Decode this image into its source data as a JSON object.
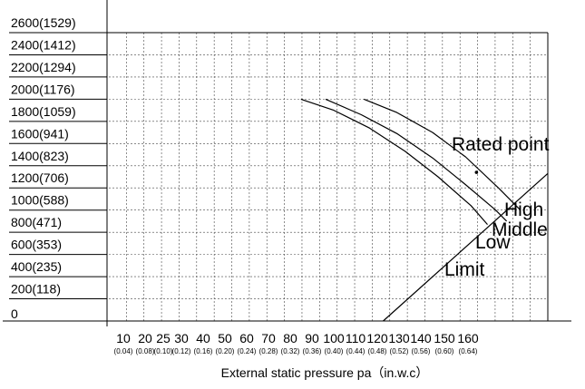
{
  "chart_data": {
    "type": "line",
    "xlabel": "External static pressure pa（in.w.c）",
    "ylabel": "",
    "x_ticks": [
      {
        "value": 10,
        "label": "10",
        "sub": "(0.04)"
      },
      {
        "value": 20,
        "label": "20",
        "sub": "(0.08)"
      },
      {
        "value": 25,
        "label": "25",
        "sub": "(0.10)"
      },
      {
        "value": 30,
        "label": "30",
        "sub": "(0.12)"
      },
      {
        "value": 40,
        "label": "40",
        "sub": "(0.16)"
      },
      {
        "value": 50,
        "label": "50",
        "sub": "(0.20)"
      },
      {
        "value": 60,
        "label": "60",
        "sub": "(0.24)"
      },
      {
        "value": 70,
        "label": "70",
        "sub": "(0.28)"
      },
      {
        "value": 80,
        "label": "80",
        "sub": "(0.32)"
      },
      {
        "value": 90,
        "label": "90",
        "sub": "(0.36)"
      },
      {
        "value": 100,
        "label": "100",
        "sub": "(0.40)"
      },
      {
        "value": 110,
        "label": "110",
        "sub": "(0.44)"
      },
      {
        "value": 120,
        "label": "120",
        "sub": "(0.48)"
      },
      {
        "value": 130,
        "label": "130",
        "sub": "(0.52)"
      },
      {
        "value": 140,
        "label": "140",
        "sub": "(0.56)"
      },
      {
        "value": 150,
        "label": "150",
        "sub": "(0.60)"
      },
      {
        "value": 160,
        "label": "160",
        "sub": "(0.64)"
      }
    ],
    "y_ticks": [
      {
        "value": 0,
        "label": "0"
      },
      {
        "value": 200,
        "label": "200(118)"
      },
      {
        "value": 400,
        "label": "400(235)"
      },
      {
        "value": 600,
        "label": "600(353)"
      },
      {
        "value": 800,
        "label": "800(471)"
      },
      {
        "value": 1000,
        "label": "1000(588)"
      },
      {
        "value": 1200,
        "label": "1200(706)"
      },
      {
        "value": 1400,
        "label": "1400(823)"
      },
      {
        "value": 1600,
        "label": "1600(941)"
      },
      {
        "value": 1800,
        "label": "1800(1059)"
      },
      {
        "value": 2000,
        "label": "2000(1176)"
      },
      {
        "value": 2200,
        "label": "2200(1294)"
      },
      {
        "value": 2400,
        "label": "2400(1412)"
      },
      {
        "value": 2600,
        "label": "2600(1529)"
      }
    ],
    "xlim": [
      0,
      160
    ],
    "ylim": [
      0,
      2600
    ],
    "grid": true,
    "series": [
      {
        "name": "High",
        "points": [
          [
            93,
            2000
          ],
          [
            105,
            1880
          ],
          [
            118,
            1700
          ],
          [
            130,
            1480
          ],
          [
            142,
            1200
          ],
          [
            150,
            1000
          ]
        ]
      },
      {
        "name": "Middle",
        "points": [
          [
            79,
            2000
          ],
          [
            92,
            1860
          ],
          [
            105,
            1690
          ],
          [
            118,
            1470
          ],
          [
            130,
            1230
          ],
          [
            141,
            1000
          ],
          [
            145,
            900
          ]
        ]
      },
      {
        "name": "Low",
        "points": [
          [
            70,
            2000
          ],
          [
            82,
            1900
          ],
          [
            95,
            1740
          ],
          [
            108,
            1530
          ],
          [
            120,
            1300
          ],
          [
            132,
            1040
          ],
          [
            138,
            870
          ]
        ]
      },
      {
        "name": "Limit",
        "points": [
          [
            100,
            0
          ],
          [
            160,
            1330
          ]
        ]
      }
    ],
    "annotations": [
      {
        "text": "Rated point",
        "x": 134,
        "y": 1340
      }
    ]
  }
}
